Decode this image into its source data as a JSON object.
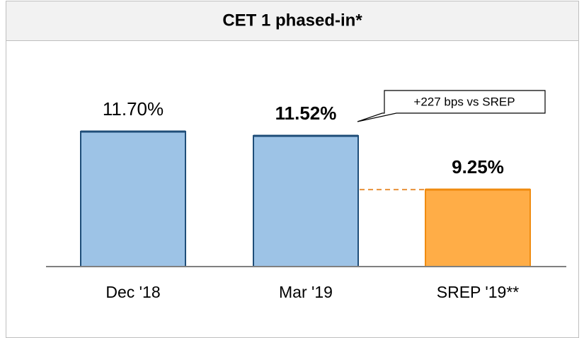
{
  "chart_data": {
    "type": "bar",
    "title": "CET 1  phased-in*",
    "categories": [
      "Dec '18",
      "Mar '19",
      "SREP '19**"
    ],
    "values": [
      11.7,
      11.52,
      9.25
    ],
    "value_labels": [
      "11.70%",
      "11.52%",
      "9.25%"
    ],
    "colors": [
      "#9dc3e6",
      "#9dc3e6",
      "#ffad47"
    ],
    "edge_colors": [
      "#1f4e79",
      "#1f4e79",
      "#f08c10"
    ],
    "bold_labels": [
      false,
      true,
      true
    ],
    "ylim": [
      6,
      14
    ],
    "annotation": "+227 bps vs SREP"
  }
}
